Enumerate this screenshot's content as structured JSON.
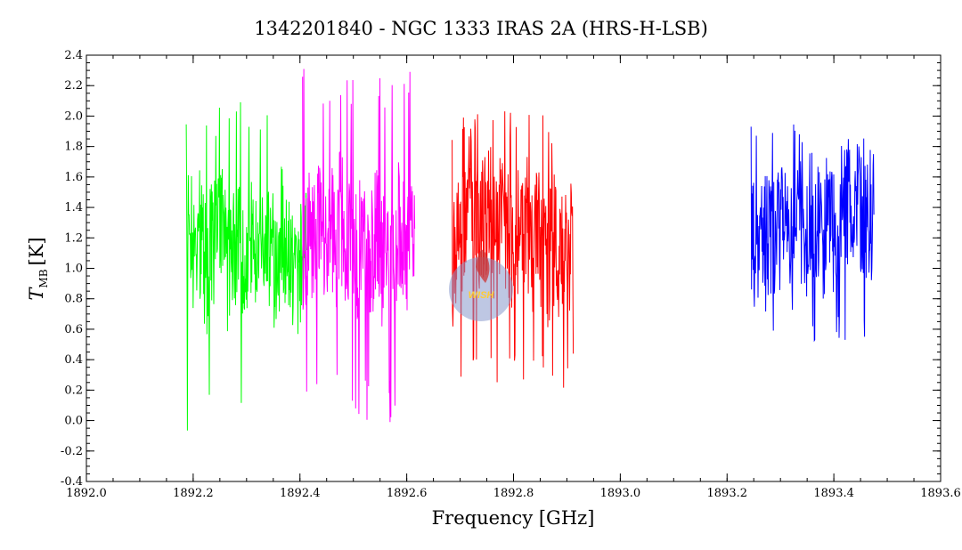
{
  "chart_data": {
    "type": "line",
    "title": "1342201840 - NGC 1333 IRAS 2A (HRS-H-LSB)",
    "xlabel": "Frequency [GHz]",
    "ylabel_main": "T",
    "ylabel_sub": "MB",
    "ylabel_unit": "[K]",
    "xlim": [
      1892.0,
      1893.6
    ],
    "ylim": [
      -0.4,
      2.4
    ],
    "x_major_ticks": [
      1892.0,
      1892.2,
      1892.4,
      1892.6,
      1892.8,
      1893.0,
      1893.2,
      1893.4,
      1893.6
    ],
    "x_tick_labels": [
      "1892.0",
      "1892.2",
      "1892.4",
      "1892.6",
      "1892.8",
      "1893.0",
      "1893.2",
      "1893.4",
      "1893.6"
    ],
    "x_minor_step": 0.05,
    "y_major_ticks": [
      -0.4,
      -0.2,
      0.0,
      0.2,
      0.4,
      0.6,
      0.8,
      1.0,
      1.2,
      1.4,
      1.6,
      1.8,
      2.0,
      2.2,
      2.4
    ],
    "y_tick_labels": [
      "-0.4",
      "-0.2",
      "0.0",
      "0.2",
      "0.4",
      "0.6",
      "0.8",
      "1.0",
      "1.2",
      "1.4",
      "1.6",
      "1.8",
      "2.0",
      "2.2",
      "2.4"
    ],
    "y_minor_step": 0.05,
    "grid": false,
    "series": [
      {
        "color": "#00ff00",
        "x": [
          1892.187,
          1892.195,
          1892.205,
          1892.215,
          1892.225,
          1892.235,
          1892.245,
          1892.255,
          1892.265,
          1892.275,
          1892.285,
          1892.295,
          1892.305,
          1892.315,
          1892.325,
          1892.335,
          1892.345,
          1892.355,
          1892.365,
          1892.375,
          1892.385,
          1892.395,
          1892.405,
          1892.413
        ],
        "y": [
          1.15,
          1.25,
          1.05,
          1.3,
          0.95,
          1.2,
          1.1,
          1.35,
          1.0,
          1.15,
          1.25,
          0.9,
          1.2,
          1.1,
          1.3,
          1.05,
          1.15,
          0.95,
          1.25,
          1.1,
          1.05,
          0.9,
          1.2,
          1.1
        ],
        "y_min": -0.18,
        "y_max": 2.15
      },
      {
        "color": "#ff00ff",
        "x": [
          1892.405,
          1892.415,
          1892.425,
          1892.435,
          1892.445,
          1892.455,
          1892.465,
          1892.475,
          1892.485,
          1892.495,
          1892.505,
          1892.515,
          1892.525,
          1892.535,
          1892.545,
          1892.555,
          1892.565,
          1892.575,
          1892.585,
          1892.595,
          1892.605,
          1892.615
        ],
        "y": [
          1.1,
          1.25,
          1.15,
          1.3,
          1.2,
          1.35,
          1.1,
          1.4,
          1.15,
          1.3,
          1.05,
          1.25,
          1.2,
          1.1,
          1.35,
          1.0,
          1.2,
          1.05,
          1.3,
          1.15,
          1.1,
          1.2
        ],
        "y_min": -0.01,
        "y_max": 2.32
      },
      {
        "color": "#ff0000",
        "x": [
          1892.685,
          1892.695,
          1892.705,
          1892.715,
          1892.725,
          1892.735,
          1892.745,
          1892.755,
          1892.765,
          1892.775,
          1892.785,
          1892.795,
          1892.805,
          1892.815,
          1892.825,
          1892.835,
          1892.845,
          1892.855,
          1892.865,
          1892.875,
          1892.885,
          1892.895,
          1892.905,
          1892.912
        ],
        "y": [
          1.0,
          1.2,
          1.3,
          1.45,
          1.35,
          1.25,
          1.3,
          1.4,
          1.2,
          1.35,
          1.25,
          1.15,
          1.3,
          1.2,
          1.35,
          1.1,
          1.25,
          1.15,
          1.05,
          1.2,
          1.1,
          1.0,
          1.15,
          1.05
        ],
        "y_min": 0.2,
        "y_max": 2.05
      },
      {
        "color": "#0000ff",
        "x": [
          1893.245,
          1893.255,
          1893.265,
          1893.275,
          1893.285,
          1893.295,
          1893.305,
          1893.315,
          1893.325,
          1893.335,
          1893.345,
          1893.355,
          1893.365,
          1893.375,
          1893.385,
          1893.395,
          1893.405,
          1893.415,
          1893.425,
          1893.435,
          1893.445,
          1893.455,
          1893.465,
          1893.475
        ],
        "y": [
          1.05,
          1.2,
          1.1,
          1.25,
          1.15,
          1.3,
          1.2,
          1.25,
          1.15,
          1.3,
          1.2,
          1.35,
          1.25,
          1.2,
          1.3,
          1.25,
          1.35,
          1.3,
          1.4,
          1.45,
          1.4,
          1.35,
          1.3,
          1.4
        ],
        "y_min": 0.52,
        "y_max": 1.97
      }
    ]
  },
  "watermark": {
    "text": "WISH",
    "fill_color": "#8899cc",
    "text_color": "#ffcc33"
  }
}
